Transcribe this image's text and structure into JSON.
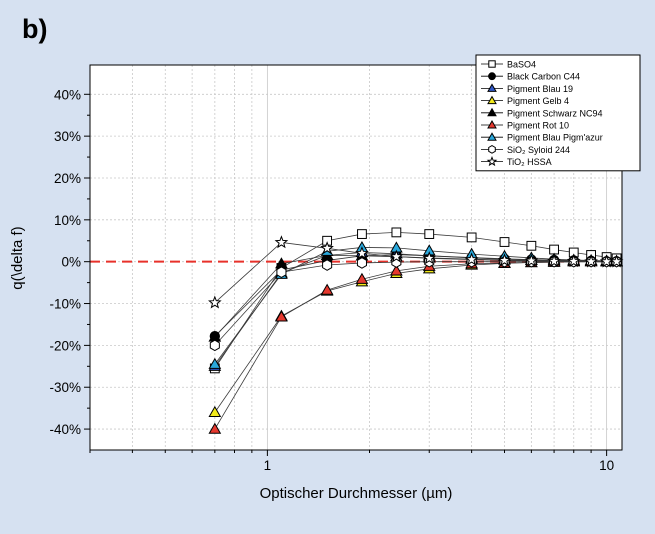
{
  "panel_label": "b)",
  "chart_data": {
    "type": "line",
    "title": "",
    "xlabel": "Optischer Durchmesser (µm)",
    "ylabel": "q(\\delta f)",
    "x_scale": "log",
    "xlim": [
      0.3,
      11.1
    ],
    "ylim": [
      -45,
      47
    ],
    "x_ticks": [
      {
        "value": 1,
        "label": "1"
      },
      {
        "value": 10,
        "label": "10"
      }
    ],
    "y_ticks": [
      {
        "value": 40,
        "label": "40%"
      },
      {
        "value": 30,
        "label": "30%"
      },
      {
        "value": 20,
        "label": "20%"
      },
      {
        "value": 10,
        "label": "10%"
      },
      {
        "value": 0,
        "label": "0%"
      },
      {
        "value": -10,
        "label": "-10%"
      },
      {
        "value": -20,
        "label": "-20%"
      },
      {
        "value": -30,
        "label": "-30%"
      },
      {
        "value": -40,
        "label": "-40%"
      }
    ],
    "grid": true,
    "reference_line": {
      "y": 0,
      "color": "#e8312a",
      "style": "dashed"
    },
    "legend_position": "top-right",
    "x": [
      0.7,
      1.1,
      1.5,
      1.9,
      2.4,
      3.0,
      4.0,
      5.0,
      6.0,
      7.0,
      8.0,
      9.0,
      10.0,
      10.7
    ],
    "series": [
      {
        "name": "BaSO4",
        "marker": "square",
        "fill": "#ffffff",
        "color": "#000000",
        "values": [
          -25.5,
          -1.5,
          5.0,
          6.6,
          7.0,
          6.6,
          5.8,
          4.7,
          3.8,
          2.9,
          2.2,
          1.6,
          1.1,
          0.8
        ]
      },
      {
        "name": "Black Carbon C44",
        "marker": "circle",
        "fill": "#000000",
        "color": "#000000",
        "values": [
          -17.8,
          -2.0,
          0.3,
          1.4,
          1.7,
          1.4,
          1.0,
          0.7,
          0.5,
          0.4,
          0.3,
          0.2,
          0.1,
          0.1
        ]
      },
      {
        "name": "Pigment Blau 19",
        "marker": "triangle",
        "fill": "#2f58c8",
        "color": "#000000",
        "values": [
          -25.0,
          -2.7,
          1.5,
          2.2,
          1.9,
          1.4,
          0.9,
          0.6,
          0.4,
          0.3,
          0.2,
          0.1,
          0.1,
          0.0
        ]
      },
      {
        "name": "Pigment Gelb 4",
        "marker": "triangle",
        "fill": "#f2ea1a",
        "color": "#000000",
        "values": [
          -36.0,
          -13.0,
          -7.0,
          -4.8,
          -2.8,
          -1.7,
          -0.8,
          -0.4,
          -0.2,
          -0.1,
          0.0,
          0.0,
          0.0,
          0.0
        ]
      },
      {
        "name": "Pigment Schwarz NC94",
        "marker": "triangle",
        "fill": "#000000",
        "color": "#000000",
        "values": [
          -18.0,
          -0.5,
          1.5,
          1.4,
          1.2,
          0.9,
          0.6,
          0.4,
          0.3,
          0.2,
          0.1,
          0.1,
          0.0,
          0.0
        ]
      },
      {
        "name": "Pigment Rot 10",
        "marker": "triangle",
        "fill": "#e5382e",
        "color": "#000000",
        "values": [
          -40.0,
          -13.2,
          -6.8,
          -4.2,
          -2.2,
          -1.1,
          -0.5,
          -0.3,
          -0.2,
          -0.1,
          0.0,
          0.0,
          0.0,
          0.0
        ]
      },
      {
        "name": "Pigment Blau Pigm'azur",
        "marker": "triangle",
        "fill": "#2aa8dc",
        "color": "#000000",
        "values": [
          -24.5,
          -3.0,
          2.5,
          3.4,
          3.3,
          2.6,
          1.8,
          1.3,
          0.9,
          0.6,
          0.4,
          0.3,
          0.2,
          0.1
        ]
      },
      {
        "name": "SiO₂ Syloid 244",
        "marker": "hexagon",
        "fill": "#ffffff",
        "color": "#000000",
        "values": [
          -20.0,
          -2.5,
          -0.8,
          -0.3,
          -0.1,
          0.0,
          0.0,
          0.0,
          0.0,
          0.0,
          0.0,
          0.0,
          0.0,
          0.0
        ]
      },
      {
        "name": "TiO₂ HSSA",
        "marker": "star",
        "fill": "#ffffff",
        "color": "#000000",
        "values": [
          -9.8,
          4.6,
          3.2,
          2.0,
          1.2,
          0.8,
          0.5,
          0.3,
          0.2,
          0.1,
          0.1,
          0.0,
          0.0,
          0.0
        ]
      }
    ]
  }
}
